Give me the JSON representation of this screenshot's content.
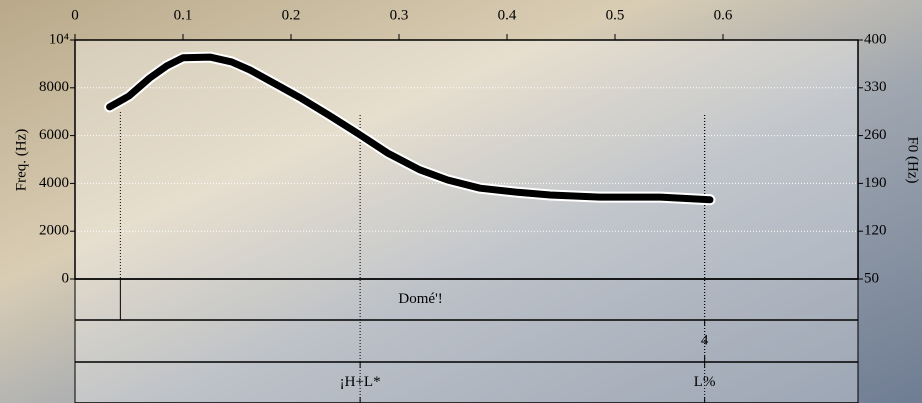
{
  "chart_data": {
    "type": "line",
    "ylabel": "Freq. (Hz)",
    "y2label": "F0 (Hz)",
    "x": [
      0.032,
      0.05,
      0.069,
      0.085,
      0.1,
      0.125,
      0.145,
      0.162,
      0.185,
      0.208,
      0.235,
      0.264,
      0.29,
      0.319,
      0.345,
      0.375,
      0.41,
      0.44,
      0.486,
      0.542,
      0.588
    ],
    "series": [
      {
        "color": "#000000",
        "axis": "y2",
        "values": [
          302,
          318,
          344,
          362,
          374,
          375,
          368,
          356,
          336,
          316,
          290,
          261,
          234,
          210,
          195,
          183,
          177,
          173,
          170,
          170,
          166
        ]
      }
    ],
    "xlim": [
      0,
      0.725
    ],
    "xticks": [
      0,
      0.1,
      0.2,
      0.3,
      0.4,
      0.5,
      0.6
    ],
    "ylim": [
      0,
      10000
    ],
    "yticks": [
      0,
      2000,
      4000,
      6000,
      8000,
      {
        "value": 10000,
        "label": "10⁴"
      }
    ],
    "y2lim": [
      50,
      400
    ],
    "y2ticks": [
      50,
      120,
      190,
      260,
      330,
      400
    ],
    "grid": true,
    "tiers": [
      {
        "boundaries": [
          0.042
        ],
        "labels": [
          {
            "text": "Domé'!",
            "time": 0.32
          }
        ]
      },
      {
        "labels": [
          {
            "text": "4",
            "time": 0.583
          }
        ]
      },
      {
        "labels": [
          {
            "text": "¡H+L*",
            "time": 0.264
          },
          {
            "text": "L%",
            "time": 0.583
          }
        ]
      }
    ]
  }
}
